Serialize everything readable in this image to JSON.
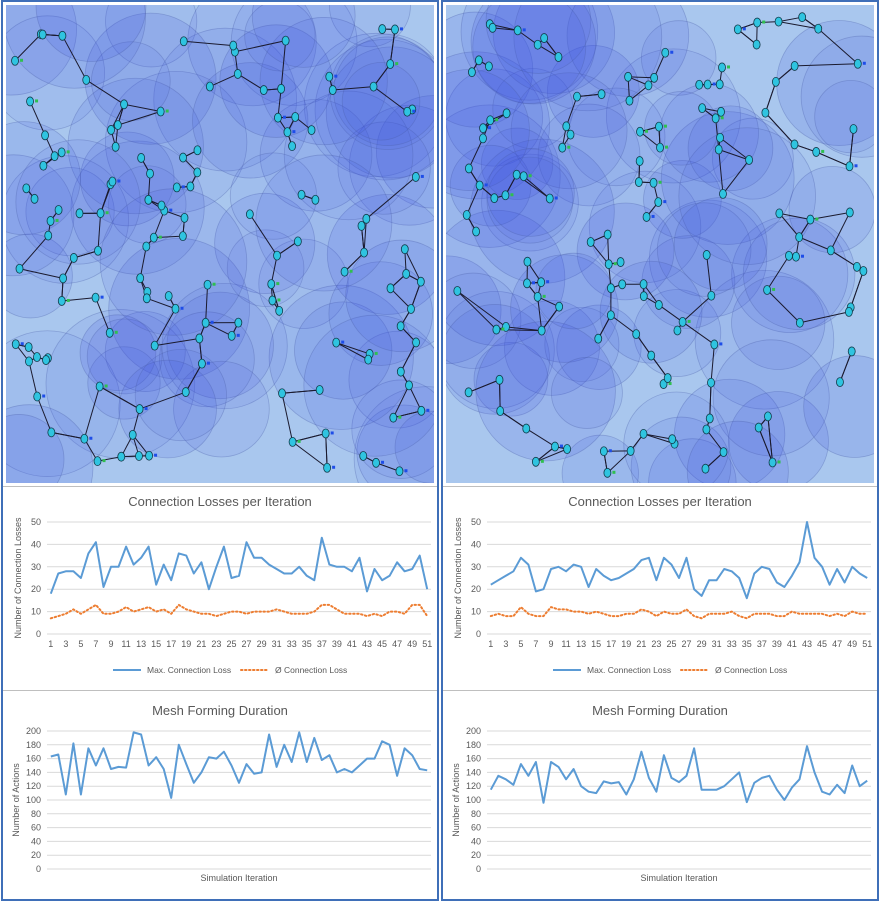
{
  "colors": {
    "line": "#5b9bd5",
    "dotted": "#ed7d31",
    "grid": "#d9d9d9",
    "axis_text": "#595959",
    "sim_bg": "#a9c7ee",
    "frame": "#3f6fb8"
  },
  "panels": [
    {
      "losses": {
        "chart_data": {
          "type": "line",
          "title": "Connection Losses per Iteration",
          "ylabel": "Number of Connection Losses",
          "xlabel": "",
          "ylim": [
            0,
            50
          ],
          "yticks": [
            0,
            10,
            20,
            30,
            40,
            50
          ],
          "x": [
            1,
            2,
            3,
            4,
            5,
            6,
            7,
            8,
            9,
            10,
            11,
            12,
            13,
            14,
            15,
            16,
            17,
            18,
            19,
            20,
            21,
            22,
            23,
            24,
            25,
            26,
            27,
            28,
            29,
            30,
            31,
            32,
            33,
            34,
            35,
            36,
            37,
            38,
            39,
            40,
            41,
            42,
            43,
            44,
            45,
            46,
            47,
            48,
            49,
            50,
            51
          ],
          "xtick_labels": [
            "1",
            "3",
            "5",
            "7",
            "9",
            "11",
            "13",
            "15",
            "17",
            "19",
            "21",
            "23",
            "25",
            "27",
            "29",
            "31",
            "33",
            "35",
            "37",
            "39",
            "41",
            "43",
            "45",
            "47",
            "49",
            "51"
          ],
          "legend_position": "bottom",
          "series": [
            {
              "name": "Max. Connection Loss",
              "style": "solid",
              "values": [
                18,
                27,
                28,
                28,
                25,
                36,
                41,
                21,
                30,
                30,
                39,
                31,
                34,
                39,
                22,
                31,
                24,
                36,
                35,
                27,
                32,
                20,
                30,
                39,
                25,
                26,
                41,
                34,
                34,
                31,
                29,
                27,
                27,
                30,
                26,
                24,
                43,
                31,
                30,
                30,
                28,
                34,
                19,
                29,
                24,
                26,
                32,
                28,
                29,
                35,
                20
              ]
            },
            {
              "name": "Ø Connection Loss",
              "style": "dotted",
              "values": [
                7,
                8,
                9,
                11,
                9,
                11,
                13,
                9,
                9,
                10,
                12,
                10,
                11,
                12,
                10,
                11,
                9,
                13,
                11,
                10,
                9,
                9,
                8,
                9,
                10,
                10,
                9,
                10,
                10,
                10,
                11,
                10,
                9,
                9,
                9,
                10,
                13,
                13,
                11,
                9,
                9,
                9,
                8,
                9,
                8,
                10,
                10,
                9,
                13,
                13,
                8
              ]
            }
          ]
        }
      },
      "duration": {
        "chart_data": {
          "type": "line",
          "title": "Mesh Forming Duration",
          "ylabel": "Number of Actions",
          "xlabel": "Simulation Iteration",
          "ylim": [
            0,
            200
          ],
          "yticks": [
            0,
            20,
            40,
            60,
            80,
            100,
            120,
            140,
            160,
            180,
            200
          ],
          "series": [
            {
              "style": "solid",
              "values": [
                163,
                166,
                108,
                182,
                108,
                175,
                150,
                175,
                145,
                148,
                147,
                198,
                195,
                150,
                162,
                145,
                103,
                180,
                152,
                125,
                140,
                162,
                160,
                170,
                150,
                125,
                152,
                138,
                140,
                195,
                148,
                180,
                155,
                198,
                155,
                190,
                158,
                165,
                140,
                145,
                140,
                150,
                160,
                160,
                185,
                180,
                135,
                175,
                165,
                145,
                143
              ]
            }
          ]
        }
      }
    },
    {
      "losses": {
        "chart_data": {
          "type": "line",
          "title": "Connection Losses per Iteration",
          "ylabel": "Number of Connection Losses",
          "xlabel": "",
          "ylim": [
            0,
            50
          ],
          "yticks": [
            0,
            10,
            20,
            30,
            40,
            50
          ],
          "x": [
            1,
            2,
            3,
            4,
            5,
            6,
            7,
            8,
            9,
            10,
            11,
            12,
            13,
            14,
            15,
            16,
            17,
            18,
            19,
            20,
            21,
            22,
            23,
            24,
            25,
            26,
            27,
            28,
            29,
            30,
            31,
            32,
            33,
            34,
            35,
            36,
            37,
            38,
            39,
            40,
            41,
            42,
            43,
            44,
            45,
            46,
            47,
            48,
            49,
            50,
            51
          ],
          "xtick_labels": [
            "1",
            "3",
            "5",
            "7",
            "9",
            "11",
            "13",
            "15",
            "17",
            "19",
            "21",
            "23",
            "25",
            "27",
            "29",
            "31",
            "33",
            "35",
            "37",
            "39",
            "41",
            "43",
            "45",
            "47",
            "49",
            "51"
          ],
          "legend_position": "bottom",
          "series": [
            {
              "name": "Max. Connection Loss",
              "style": "solid",
              "values": [
                22,
                24,
                26,
                28,
                34,
                31,
                19,
                20,
                29,
                30,
                28,
                31,
                30,
                21,
                29,
                26,
                24,
                25,
                27,
                29,
                33,
                34,
                24,
                34,
                31,
                25,
                34,
                20,
                17,
                24,
                24,
                29,
                28,
                25,
                16,
                27,
                30,
                29,
                23,
                21,
                26,
                32,
                50,
                34,
                30,
                22,
                29,
                23,
                30,
                27,
                25
              ]
            },
            {
              "name": "Ø Connection Loss",
              "style": "dotted",
              "values": [
                8,
                9,
                8,
                8,
                12,
                9,
                8,
                8,
                12,
                11,
                11,
                10,
                10,
                9,
                10,
                9,
                8,
                8,
                9,
                9,
                11,
                10,
                8,
                10,
                9,
                9,
                11,
                8,
                7,
                9,
                9,
                9,
                10,
                8,
                7,
                9,
                9,
                9,
                8,
                8,
                10,
                9,
                9,
                9,
                9,
                8,
                9,
                8,
                10,
                9,
                9
              ]
            }
          ]
        }
      },
      "duration": {
        "chart_data": {
          "type": "line",
          "title": "Mesh Forming Duration",
          "ylabel": "Number of Actions",
          "xlabel": "Simulation Iteration",
          "ylim": [
            0,
            200
          ],
          "yticks": [
            0,
            20,
            40,
            60,
            80,
            100,
            120,
            140,
            160,
            180,
            200
          ],
          "series": [
            {
              "style": "solid",
              "values": [
                115,
                135,
                130,
                122,
                152,
                135,
                155,
                96,
                155,
                148,
                130,
                145,
                120,
                112,
                110,
                127,
                124,
                126,
                108,
                130,
                170,
                132,
                112,
                165,
                132,
                126,
                135,
                175,
                115,
                115,
                115,
                120,
                130,
                140,
                97,
                125,
                132,
                135,
                115,
                100,
                118,
                130,
                178,
                140,
                112,
                108,
                122,
                110,
                150,
                120,
                128
              ]
            }
          ]
        }
      }
    }
  ]
}
